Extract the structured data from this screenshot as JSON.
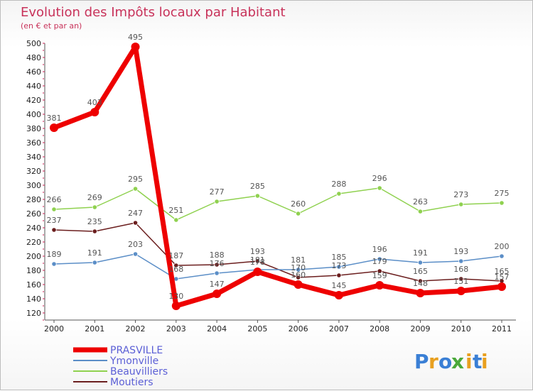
{
  "chart_data": {
    "type": "line",
    "title": "Evolution des Impôts locaux par Habitant",
    "subtitle": "(en € et par an)",
    "xlabel": "",
    "ylabel": "",
    "categories": [
      "2000",
      "2001",
      "2002",
      "2003",
      "2004",
      "2005",
      "2006",
      "2007",
      "2008",
      "2009",
      "2010",
      "2011"
    ],
    "ylim": [
      120,
      500
    ],
    "yticks": [
      120,
      140,
      160,
      180,
      200,
      220,
      240,
      260,
      280,
      300,
      320,
      340,
      360,
      380,
      400,
      420,
      440,
      460,
      480,
      500
    ],
    "grid": false,
    "legend_position": "bottom-left",
    "series": [
      {
        "name": "PRASVILLE",
        "color": "#ee0000",
        "values": [
          381,
          403,
          495,
          130,
          147,
          178,
          160,
          145,
          159,
          148,
          151,
          157
        ],
        "labels": [
          "381",
          "403",
          "495",
          "130",
          "147",
          "178",
          "160",
          "145",
          "159",
          "148",
          "151",
          "157"
        ]
      },
      {
        "name": "Ymonville",
        "color": "#5b8ec7",
        "values": [
          189,
          191,
          203,
          168,
          176,
          181,
          181,
          185,
          196,
          191,
          193,
          200
        ],
        "labels": [
          "189",
          "191",
          "203",
          "168",
          "176",
          "181",
          "181",
          "185",
          "196",
          "191",
          "193",
          "200"
        ]
      },
      {
        "name": "Beauvilliers",
        "color": "#8fd14f",
        "values": [
          266,
          269,
          295,
          251,
          277,
          285,
          260,
          288,
          296,
          263,
          273,
          275
        ],
        "labels": [
          "266",
          "269",
          "295",
          "251",
          "277",
          "285",
          "260",
          "288",
          "296",
          "263",
          "273",
          "275"
        ]
      },
      {
        "name": "Moutiers",
        "color": "#6b1e1e",
        "values": [
          237,
          235,
          247,
          187,
          188,
          193,
          170,
          173,
          179,
          165,
          168,
          165
        ],
        "labels": [
          "237",
          "235",
          "247",
          "187",
          "188",
          "193",
          "170",
          "173",
          "179",
          "165",
          "168",
          "165"
        ]
      }
    ]
  },
  "branding": {
    "letters": [
      "P",
      "r",
      "o",
      "x",
      "i",
      "t",
      "i"
    ],
    "colors": [
      "#3a7fd5",
      "#e8a020",
      "#3a7fd5",
      "#4aa83a",
      "#e8a020",
      "#3a7fd5",
      "#e8a020"
    ]
  }
}
